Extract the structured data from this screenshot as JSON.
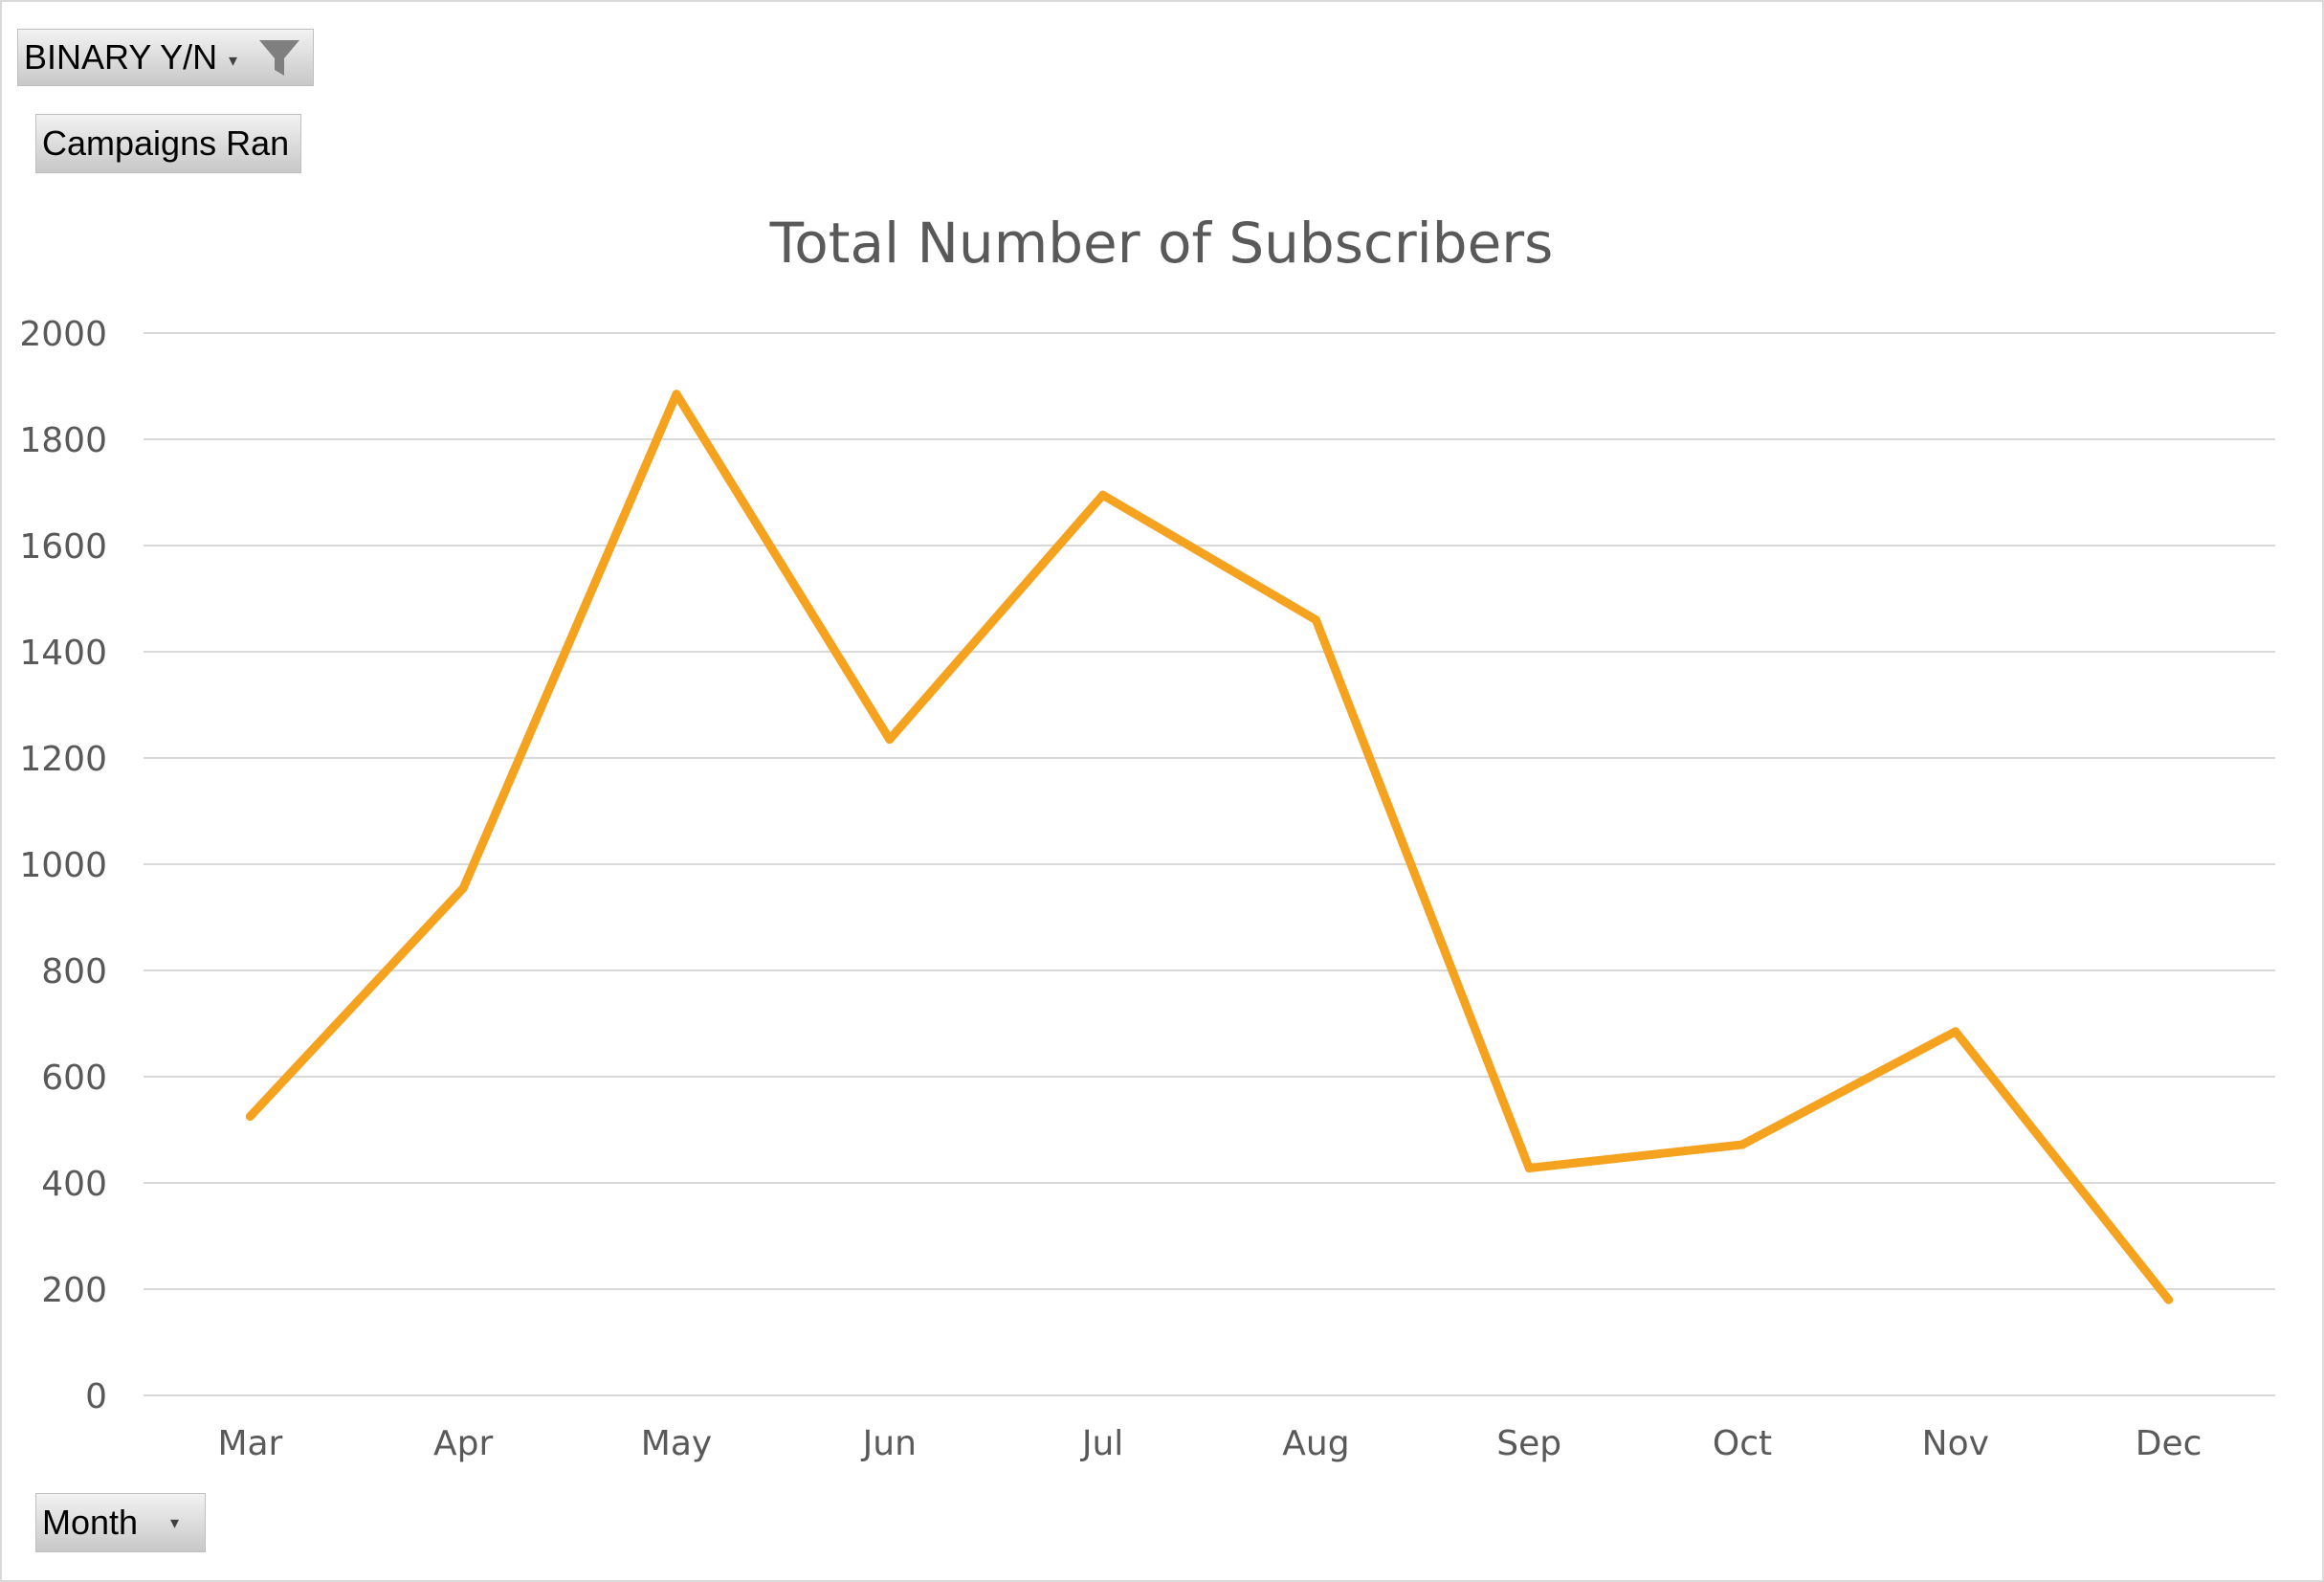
{
  "filter_button": {
    "label": "BINARY Y/N",
    "icon": "funnel-icon"
  },
  "values_button": {
    "label": "Campaigns Ran"
  },
  "axis_button": {
    "label": "Month"
  },
  "colors": {
    "line": "#F5A31F",
    "grid": "#d9d9d9",
    "text": "#595959"
  },
  "chart_data": {
    "type": "line",
    "title": "Total Number of Subscribers",
    "xlabel": "",
    "ylabel": "",
    "categories": [
      "Mar",
      "Apr",
      "May",
      "Jun",
      "Jul",
      "Aug",
      "Sep",
      "Oct",
      "Nov",
      "Dec"
    ],
    "series": [
      {
        "values": [
          525,
          955,
          1885,
          1235,
          1695,
          1460,
          428,
          472,
          685,
          180
        ]
      }
    ],
    "ylim": [
      0,
      2000
    ],
    "yticks": [
      0,
      200,
      400,
      600,
      800,
      1000,
      1200,
      1400,
      1600,
      1800,
      2000
    ],
    "grid": true,
    "legend": "none"
  }
}
